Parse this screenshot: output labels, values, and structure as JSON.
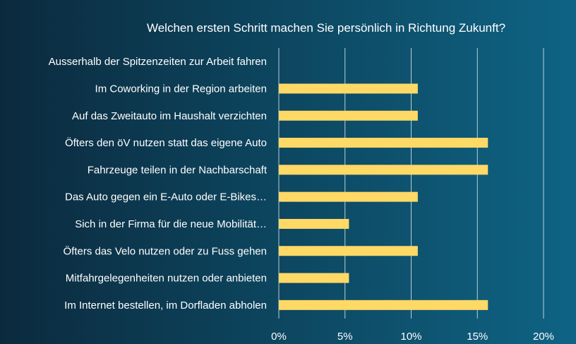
{
  "chart_data": {
    "type": "bar",
    "orientation": "horizontal",
    "title": "Welchen ersten Schritt machen Sie persönlich in Richtung Zukunft?",
    "categories": [
      "Ausserhalb der Spitzenzeiten zur Arbeit fahren",
      "Im Coworking in der Region arbeiten",
      "Auf das Zweitauto im Haushalt verzichten",
      "Öfters den öV nutzen statt das eigene Auto",
      "Fahrzeuge teilen in der Nachbarschaft",
      "Das Auto gegen ein E-Auto oder E-Bikes…",
      "Sich in der Firma für die neue Mobilität…",
      "Öfters das Velo nutzen oder zu Fuss gehen",
      "Mitfahrgelegenheiten nutzen oder anbieten",
      "Im Internet bestellen, im Dorfladen abholen"
    ],
    "values": [
      0,
      10.5,
      10.5,
      15.8,
      15.8,
      10.5,
      5.3,
      10.5,
      5.3,
      15.8
    ],
    "xlim": [
      0,
      20
    ],
    "xticks": [
      0,
      5,
      10,
      15,
      20
    ],
    "xtick_labels": [
      "0%",
      "5%",
      "10%",
      "15%",
      "20%"
    ],
    "xlabel": "",
    "ylabel": "",
    "grid": true,
    "colors": {
      "bar": "#ffd966",
      "grid": "#d8e4ea",
      "text": "#ffffff"
    }
  }
}
